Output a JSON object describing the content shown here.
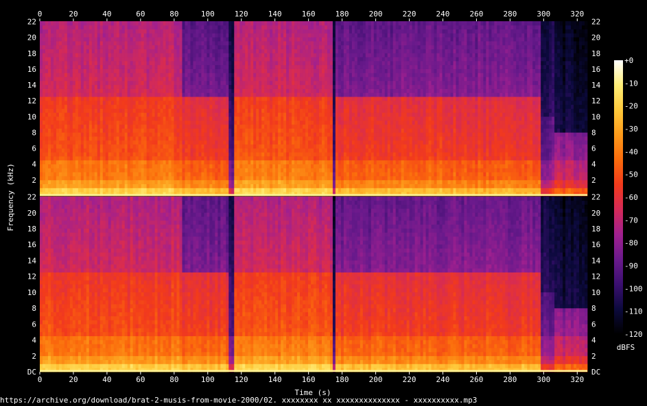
{
  "chart_data": {
    "type": "heatmap",
    "xlabel": "Time (s)",
    "ylabel": "Frequency (kHz)",
    "xlim": [
      0,
      326
    ],
    "ylim": [
      0,
      22.05
    ],
    "x_ticks": [
      0,
      20,
      40,
      60,
      80,
      100,
      120,
      140,
      160,
      180,
      200,
      220,
      240,
      260,
      280,
      300,
      320
    ],
    "y_ticks_top": [
      "2",
      "4",
      "6",
      "8",
      "10",
      "12",
      "14",
      "16",
      "18",
      "20",
      "22"
    ],
    "y_ticks_bottom": [
      "DC",
      "2",
      "4",
      "6",
      "8",
      "10",
      "12",
      "14",
      "16",
      "18",
      "20",
      "22"
    ],
    "y_tick_values_bottom": [
      0,
      2,
      4,
      6,
      8,
      10,
      12,
      14,
      16,
      18,
      20,
      22
    ],
    "channels": [
      "top",
      "bottom"
    ],
    "colorbar": {
      "label": "dBFS",
      "ticks": [
        "+0",
        "-10",
        "-20",
        "-30",
        "-40",
        "-50",
        "-60",
        "-70",
        "-80",
        "-90",
        "-100",
        "-110",
        "-120"
      ],
      "range": [
        -120,
        0
      ],
      "colors": [
        "#000000",
        "#0c0a3d",
        "#3b0f70",
        "#6a1a8c",
        "#a0208f",
        "#d42a58",
        "#f23a1c",
        "#fb6b0c",
        "#fd9a1a",
        "#fec93b",
        "#ffee77",
        "#ffffff"
      ]
    },
    "segments": [
      {
        "start": 0,
        "end": 85,
        "level": 0.62,
        "highcut": 12.7,
        "hf_level": 0.45
      },
      {
        "start": 85,
        "end": 112,
        "level": 0.58,
        "highcut": 12.7,
        "hf_level": 0.3
      },
      {
        "start": 112,
        "end": 116,
        "level": 0.25,
        "highcut": 12.7,
        "hf_level": 0.15
      },
      {
        "start": 116,
        "end": 175,
        "level": 0.63,
        "highcut": 12.7,
        "hf_level": 0.45
      },
      {
        "start": 175,
        "end": 176,
        "level": 0.2,
        "highcut": 12.7,
        "hf_level": 0.12
      },
      {
        "start": 176,
        "end": 210,
        "level": 0.58,
        "highcut": 12.7,
        "hf_level": 0.31
      },
      {
        "start": 210,
        "end": 250,
        "level": 0.58,
        "highcut": 12.7,
        "hf_level": 0.32
      },
      {
        "start": 250,
        "end": 298,
        "level": 0.57,
        "highcut": 12.7,
        "hf_level": 0.32
      },
      {
        "start": 298,
        "end": 306,
        "level": 0.32,
        "highcut": 10.0,
        "hf_level": 0.16
      },
      {
        "start": 306,
        "end": 326,
        "level": 0.4,
        "highcut": 8.0,
        "hf_level": 0.1
      }
    ]
  },
  "footer": {
    "source": "https://archive.org/download/brat-2-musis-from-movie-2000/02. xxxxxxxx xx xxxxxxxxxxxxxx - xxxxxxxxxx.mp3"
  }
}
